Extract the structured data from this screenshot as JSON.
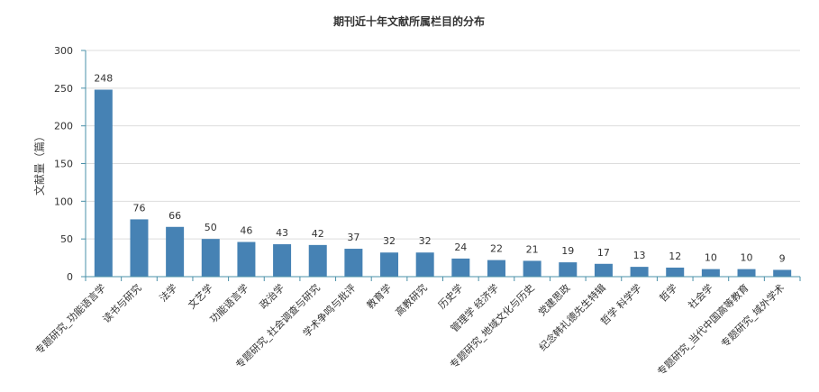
{
  "chart_data": {
    "type": "bar",
    "title": "期刊近十年文献所属栏目的分布",
    "xlabel": "",
    "ylabel": "文献量（篇）",
    "ylim": [
      0,
      300
    ],
    "yticks": [
      0,
      50,
      100,
      150,
      200,
      250,
      300
    ],
    "grid": true,
    "bar_color": "#4682b4",
    "categories": [
      "专题研究_功能语言学",
      "读书与研究",
      "法学",
      "文艺学",
      "功能语言学",
      "政治学",
      "专题研究_社会调查与研究",
      "学术争鸣与批评",
      "教育学",
      "高教研究",
      "历史学",
      "管理学 经济学",
      "专题研究_地域文化与历史",
      "党建思政",
      "纪念韩礼德先生特辑",
      "哲学 科学学",
      "哲学",
      "社会学",
      "专题研究_当代中国高等教育",
      "专题研究_域外学术"
    ],
    "values": [
      248,
      76,
      66,
      50,
      46,
      43,
      42,
      37,
      32,
      32,
      24,
      22,
      21,
      19,
      17,
      13,
      12,
      10,
      10,
      9
    ]
  }
}
